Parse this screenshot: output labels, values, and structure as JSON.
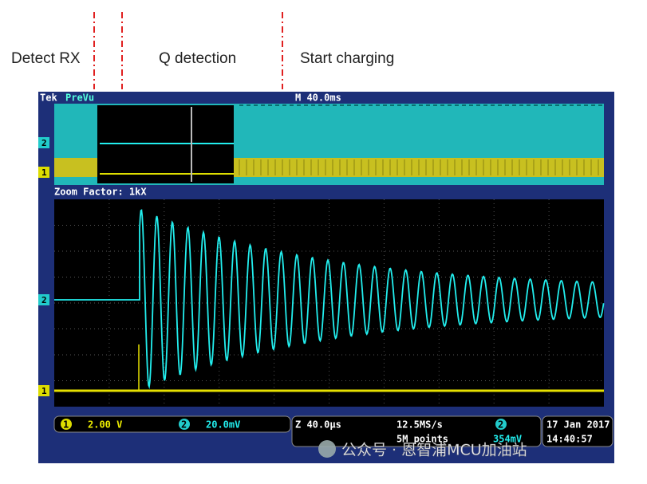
{
  "annotations": {
    "labels": [
      "Detect RX",
      "Q detection",
      "Start charging"
    ]
  },
  "scope": {
    "brand": "Tek",
    "mode": "PreVu",
    "timebase": "M 40.0ms",
    "zoom_factor": "Zoom Factor: 1kX",
    "channel_markers": [
      "2",
      "1",
      "2",
      "1"
    ],
    "status": {
      "ch1_number": "1",
      "ch1_scale": "2.00 V",
      "ch2_number": "2",
      "ch2_scale": "20.0mV",
      "zoom_timebase": "Z 40.0µs",
      "sample_rate": "12.5MS/s",
      "record_length": "5M points",
      "trigger_channel": "2",
      "trigger_level": "354mV",
      "date": "17 Jan 2017",
      "time": "14:40:57"
    }
  },
  "watermark": "公众号 · 恩智浦MCU加油站"
}
